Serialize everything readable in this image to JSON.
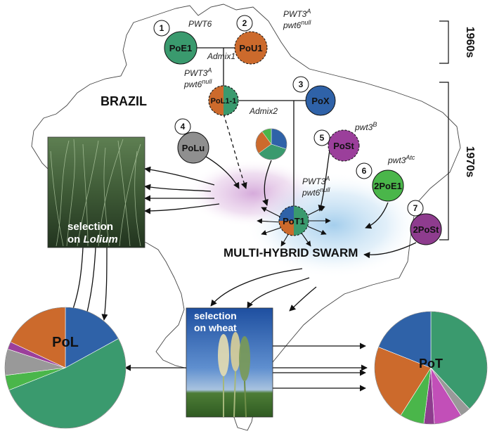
{
  "labels": {
    "country": "BRAZIL",
    "swarm": "MULTI-HYBRID SWARM",
    "period_1960s": "1960s",
    "period_1970s": "1970s",
    "admix1": "Admix1",
    "admix2": "Admix2",
    "lolium_sel_1": "selection",
    "lolium_sel_2": "on ",
    "lolium_sel_3": "Lolium",
    "wheat_sel_1": "selection",
    "wheat_sel_2": "on wheat",
    "pol": "PoL",
    "pot": "PoT"
  },
  "nodes": [
    {
      "num": "1",
      "name": "PoE1",
      "gene_a": "PWT6",
      "sup_a": "",
      "gene_b": "",
      "sup_b": "",
      "color": "#3a9a6e"
    },
    {
      "num": "2",
      "name": "PoU1",
      "gene_a": "PWT3",
      "sup_a": "A",
      "gene_b": "pwt6",
      "sup_b": "null",
      "color": "#cc6a2c"
    },
    {
      "num": "",
      "name": "PoL1-1",
      "gene_a": "PWT3",
      "sup_a": "A",
      "gene_b": "pwt6",
      "sup_b": "null",
      "color": "#cc6a2c"
    },
    {
      "num": "3",
      "name": "PoX",
      "gene_a": "",
      "sup_a": "",
      "gene_b": "",
      "sup_b": "",
      "color": "#2f62a8"
    },
    {
      "num": "4",
      "name": "PoLu",
      "gene_a": "",
      "sup_a": "",
      "gene_b": "",
      "sup_b": "",
      "color": "#8f8f8f"
    },
    {
      "num": "5",
      "name": "PoSt",
      "gene_a": "pwt3",
      "sup_a": "B",
      "gene_b": "",
      "sup_b": "",
      "color": "#9b3f9b"
    },
    {
      "num": "6",
      "name": "2PoE1",
      "gene_a": "pwt3",
      "sup_a": "Atc",
      "gene_b": "",
      "sup_b": "",
      "color": "#4ab64a"
    },
    {
      "num": "7",
      "name": "2PoSt",
      "gene_a": "",
      "sup_a": "",
      "gene_b": "",
      "sup_b": "",
      "color": "#8e3c8e"
    },
    {
      "num": "",
      "name": "PoT1",
      "gene_a": "PWT3",
      "sup_a": "A",
      "gene_b": "pwt6",
      "sup_b": "null",
      "color": "#3a9a6e"
    }
  ],
  "colors": {
    "green": "#3a9a6e",
    "orange": "#cc6a2c",
    "blue": "#2f62a8",
    "gray": "#999999",
    "purple": "#9b3f9b",
    "lightgreen": "#4ab64a",
    "magenta": "#c24fb8"
  },
  "pies": {
    "admix2": [
      {
        "value": 30,
        "color": "#2f62a8"
      },
      {
        "value": 35,
        "color": "#3a9a6e"
      },
      {
        "value": 25,
        "color": "#cc6a2c"
      },
      {
        "value": 10,
        "color": "#4ab64a"
      }
    ],
    "pol": [
      {
        "value": 17,
        "color": "#2f62a8"
      },
      {
        "value": 52,
        "color": "#3a9a6e"
      },
      {
        "value": 4,
        "color": "#4ab64a"
      },
      {
        "value": 7,
        "color": "#999999"
      },
      {
        "value": 2,
        "color": "#9b3f9b"
      },
      {
        "value": 18,
        "color": "#cc6a2c"
      }
    ],
    "pot": [
      {
        "value": 38,
        "color": "#3a9a6e"
      },
      {
        "value": 3,
        "color": "#999999"
      },
      {
        "value": 8,
        "color": "#c24fb8"
      },
      {
        "value": 3,
        "color": "#8e3c8e"
      },
      {
        "value": 7,
        "color": "#4ab64a"
      },
      {
        "value": 22,
        "color": "#cc6a2c"
      },
      {
        "value": 19,
        "color": "#2f62a8"
      }
    ]
  }
}
